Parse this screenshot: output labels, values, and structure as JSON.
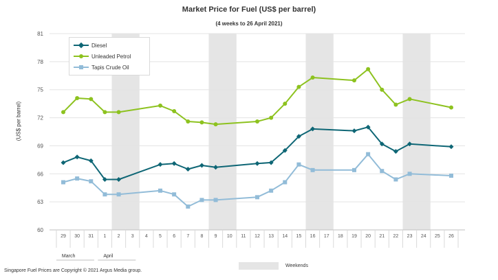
{
  "chart_data": {
    "type": "line",
    "title": "Market Price for Fuel (US$  per barrel)",
    "subtitle": "(4 weeks to 26 April 2021)",
    "ylabel": "(US$ per barrel)",
    "xlabel": "",
    "ylim": [
      60,
      81
    ],
    "yticks": [
      60,
      63,
      66,
      69,
      72,
      75,
      78,
      81
    ],
    "categories": [
      "29",
      "30",
      "31",
      "1",
      "2",
      "3",
      "4",
      "5",
      "6",
      "7",
      "8",
      "9",
      "10",
      "11",
      "12",
      "13",
      "14",
      "15",
      "16",
      "17",
      "18",
      "19",
      "20",
      "21",
      "22",
      "23",
      "24",
      "25",
      "26"
    ],
    "month_groups": [
      {
        "label": "March",
        "start": 0,
        "end": 2
      },
      {
        "label": "April",
        "start": 3,
        "end": 28
      }
    ],
    "weekends": [
      [
        4,
        5
      ],
      [
        11,
        12
      ],
      [
        18,
        19
      ],
      [
        25,
        26
      ]
    ],
    "weekend_label": "Weekends",
    "series": [
      {
        "name": "Diesel",
        "color": "#0e6675",
        "marker": "diamond",
        "points": [
          [
            0,
            67.2
          ],
          [
            1,
            67.8
          ],
          [
            2,
            67.4
          ],
          [
            3,
            65.4
          ],
          [
            4,
            65.4
          ],
          [
            7,
            67.0
          ],
          [
            8,
            67.1
          ],
          [
            9,
            66.5
          ],
          [
            10,
            66.9
          ],
          [
            11,
            66.7
          ],
          [
            14,
            67.1
          ],
          [
            15,
            67.2
          ],
          [
            16,
            68.5
          ],
          [
            17,
            70.0
          ],
          [
            18,
            70.8
          ],
          [
            21,
            70.6
          ],
          [
            22,
            71.0
          ],
          [
            23,
            69.2
          ],
          [
            24,
            68.4
          ],
          [
            25,
            69.2
          ],
          [
            28,
            68.9
          ]
        ]
      },
      {
        "name": "Unleaded Petrol",
        "color": "#8dc21f",
        "marker": "circle",
        "points": [
          [
            0,
            72.6
          ],
          [
            1,
            74.1
          ],
          [
            2,
            74.0
          ],
          [
            3,
            72.6
          ],
          [
            4,
            72.6
          ],
          [
            7,
            73.3
          ],
          [
            8,
            72.7
          ],
          [
            9,
            71.6
          ],
          [
            10,
            71.5
          ],
          [
            11,
            71.3
          ],
          [
            14,
            71.6
          ],
          [
            15,
            72.0
          ],
          [
            16,
            73.5
          ],
          [
            17,
            75.3
          ],
          [
            18,
            76.3
          ],
          [
            21,
            76.0
          ],
          [
            22,
            77.2
          ],
          [
            23,
            75.0
          ],
          [
            24,
            73.4
          ],
          [
            25,
            74.0
          ],
          [
            28,
            73.1
          ]
        ]
      },
      {
        "name": "Tapis Crude Oil",
        "color": "#92bcd8",
        "marker": "square",
        "points": [
          [
            0,
            65.1
          ],
          [
            1,
            65.5
          ],
          [
            2,
            65.2
          ],
          [
            3,
            63.8
          ],
          [
            4,
            63.8
          ],
          [
            7,
            64.2
          ],
          [
            8,
            63.8
          ],
          [
            9,
            62.5
          ],
          [
            10,
            63.2
          ],
          [
            11,
            63.2
          ],
          [
            14,
            63.5
          ],
          [
            15,
            64.2
          ],
          [
            16,
            65.1
          ],
          [
            17,
            67.0
          ],
          [
            18,
            66.4
          ],
          [
            21,
            66.4
          ],
          [
            22,
            68.1
          ],
          [
            23,
            66.3
          ],
          [
            24,
            65.4
          ],
          [
            25,
            66.0
          ],
          [
            28,
            65.8
          ]
        ]
      }
    ]
  },
  "legend": {
    "diesel": "Diesel",
    "unleaded": "Unleaded Petrol",
    "tapis": "Tapis Crude Oil"
  },
  "footer": {
    "copyright": "Singapore  Fuel Prices are Copyright  © 2021  Argus Media group."
  }
}
